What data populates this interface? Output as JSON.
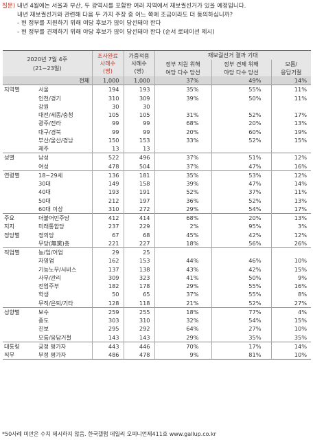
{
  "question": {
    "label": "질문)",
    "line1": "내년 4월에는 서울과 부산, 두 광역시를 포함한 여러 지역에서 재보궐선거가 있을 예정입니다.",
    "line2": "내년 재보궐선거와 관련해 다음 두 가지 주장 중 어느 쪽에 조금이라도 더 동의하십니까?",
    "line3": "- 현 정부를 지원하기 위해 여당 후보가 많이 당선돼야 한다",
    "line4": "- 현 정부를 견제하기 위해 야당 후보가 많이 당선돼야 한다 (순서 로테이션 제시)"
  },
  "header": {
    "survey_period_1": "2020년 7월 4주",
    "survey_period_2": "(21~23일)",
    "col1": [
      "조사완료",
      "사례수",
      "(명)"
    ],
    "col2": [
      "가중적용",
      "사례수",
      "(명)"
    ],
    "group": "재보궐선거 결과 기대",
    "col3": [
      "정부 지원 위해",
      "여당 다수 당선"
    ],
    "col4": [
      "정부 견제 위해",
      "야당 다수 당선"
    ],
    "col5": [
      "모름/",
      "응답거절"
    ]
  },
  "rows": [
    {
      "cat": "",
      "sub": "전체",
      "n1": "1,000",
      "n2": "1,000",
      "a": "37%",
      "b": "49%",
      "c": "14%"
    },
    {
      "cat": "지역별",
      "sub": "서울",
      "n1": "194",
      "n2": "193",
      "a": "35%",
      "b": "55%",
      "c": "11%"
    },
    {
      "cat": "",
      "sub": "인천/경기",
      "n1": "310",
      "n2": "309",
      "a": "39%",
      "b": "50%",
      "c": "11%"
    },
    {
      "cat": "",
      "sub": "강원",
      "n1": "30",
      "n2": "30",
      "a": "",
      "b": "",
      "c": ""
    },
    {
      "cat": "",
      "sub": "대전/세종/충청",
      "n1": "105",
      "n2": "105",
      "a": "31%",
      "b": "52%",
      "c": "17%"
    },
    {
      "cat": "",
      "sub": "광주/전라",
      "n1": "99",
      "n2": "99",
      "a": "68%",
      "b": "20%",
      "c": "13%"
    },
    {
      "cat": "",
      "sub": "대구/경북",
      "n1": "99",
      "n2": "99",
      "a": "20%",
      "b": "60%",
      "c": "19%"
    },
    {
      "cat": "",
      "sub": "부산/울산/경남",
      "n1": "150",
      "n2": "153",
      "a": "33%",
      "b": "52%",
      "c": "15%"
    },
    {
      "cat": "",
      "sub": "제주",
      "n1": "13",
      "n2": "13",
      "a": "",
      "b": "",
      "c": ""
    },
    {
      "cat": "성별",
      "sub": "남성",
      "n1": "522",
      "n2": "496",
      "a": "37%",
      "b": "51%",
      "c": "12%"
    },
    {
      "cat": "",
      "sub": "여성",
      "n1": "478",
      "n2": "504",
      "a": "37%",
      "b": "47%",
      "c": "16%"
    },
    {
      "cat": "연령별",
      "sub": "18~29세",
      "n1": "136",
      "n2": "181",
      "a": "35%",
      "b": "53%",
      "c": "12%"
    },
    {
      "cat": "",
      "sub": "30대",
      "n1": "149",
      "n2": "158",
      "a": "39%",
      "b": "47%",
      "c": "14%"
    },
    {
      "cat": "",
      "sub": "40대",
      "n1": "193",
      "n2": "191",
      "a": "52%",
      "b": "37%",
      "c": "11%"
    },
    {
      "cat": "",
      "sub": "50대",
      "n1": "212",
      "n2": "197",
      "a": "36%",
      "b": "52%",
      "c": "13%"
    },
    {
      "cat": "",
      "sub": "60대 이상",
      "n1": "310",
      "n2": "272",
      "a": "29%",
      "b": "54%",
      "c": "17%"
    },
    {
      "cat": "주요",
      "sub": "더불어민주당",
      "n1": "412",
      "n2": "414",
      "a": "68%",
      "b": "20%",
      "c": "13%"
    },
    {
      "cat": "지지",
      "sub": "미래통합당",
      "n1": "237",
      "n2": "229",
      "a": "2%",
      "b": "95%",
      "c": "3%"
    },
    {
      "cat": "정당별",
      "sub": "정의당",
      "n1": "67",
      "n2": "68",
      "a": "45%",
      "b": "42%",
      "c": "12%"
    },
    {
      "cat": "",
      "sub": "무당(無黨)층",
      "n1": "221",
      "n2": "227",
      "a": "18%",
      "b": "56%",
      "c": "26%"
    },
    {
      "cat": "직업별",
      "sub": "농/임/어업",
      "n1": "29",
      "n2": "25",
      "a": "",
      "b": "",
      "c": ""
    },
    {
      "cat": "",
      "sub": "자영업",
      "n1": "162",
      "n2": "153",
      "a": "44%",
      "b": "46%",
      "c": "10%"
    },
    {
      "cat": "",
      "sub": "기능노무/서비스",
      "n1": "137",
      "n2": "138",
      "a": "43%",
      "b": "42%",
      "c": "15%"
    },
    {
      "cat": "",
      "sub": "사무/관리",
      "n1": "309",
      "n2": "323",
      "a": "41%",
      "b": "50%",
      "c": "9%"
    },
    {
      "cat": "",
      "sub": "전업주부",
      "n1": "182",
      "n2": "178",
      "a": "29%",
      "b": "55%",
      "c": "16%"
    },
    {
      "cat": "",
      "sub": "학생",
      "n1": "50",
      "n2": "65",
      "a": "37%",
      "b": "55%",
      "c": "8%"
    },
    {
      "cat": "",
      "sub": "무직/은퇴/기타",
      "n1": "128",
      "n2": "118",
      "a": "21%",
      "b": "52%",
      "c": "27%"
    },
    {
      "cat": "성향별",
      "sub": "보수",
      "n1": "259",
      "n2": "255",
      "a": "18%",
      "b": "77%",
      "c": "4%"
    },
    {
      "cat": "",
      "sub": "중도",
      "n1": "303",
      "n2": "310",
      "a": "32%",
      "b": "54%",
      "c": "15%"
    },
    {
      "cat": "",
      "sub": "진보",
      "n1": "295",
      "n2": "292",
      "a": "64%",
      "b": "27%",
      "c": "10%"
    },
    {
      "cat": "",
      "sub": "모름/응답거절",
      "n1": "143",
      "n2": "143",
      "a": "29%",
      "b": "35%",
      "c": "35%"
    },
    {
      "cat": "대통령",
      "sub": "긍정 평가자",
      "n1": "443",
      "n2": "446",
      "a": "70%",
      "b": "17%",
      "c": "14%"
    },
    {
      "cat": "직무",
      "sub": "부정 평가자",
      "n1": "486",
      "n2": "478",
      "a": "9%",
      "b": "81%",
      "c": "10%"
    }
  ],
  "footnote": "*50사례 미만은 수치 제시하지 않음. 한국갤럽 데일리 오피니언제411호 www.gallup.co.kr",
  "colors": {
    "label_red": "#c0392b",
    "header_bg": "#e6e6e6",
    "total_bg": "#d6d6d6"
  }
}
